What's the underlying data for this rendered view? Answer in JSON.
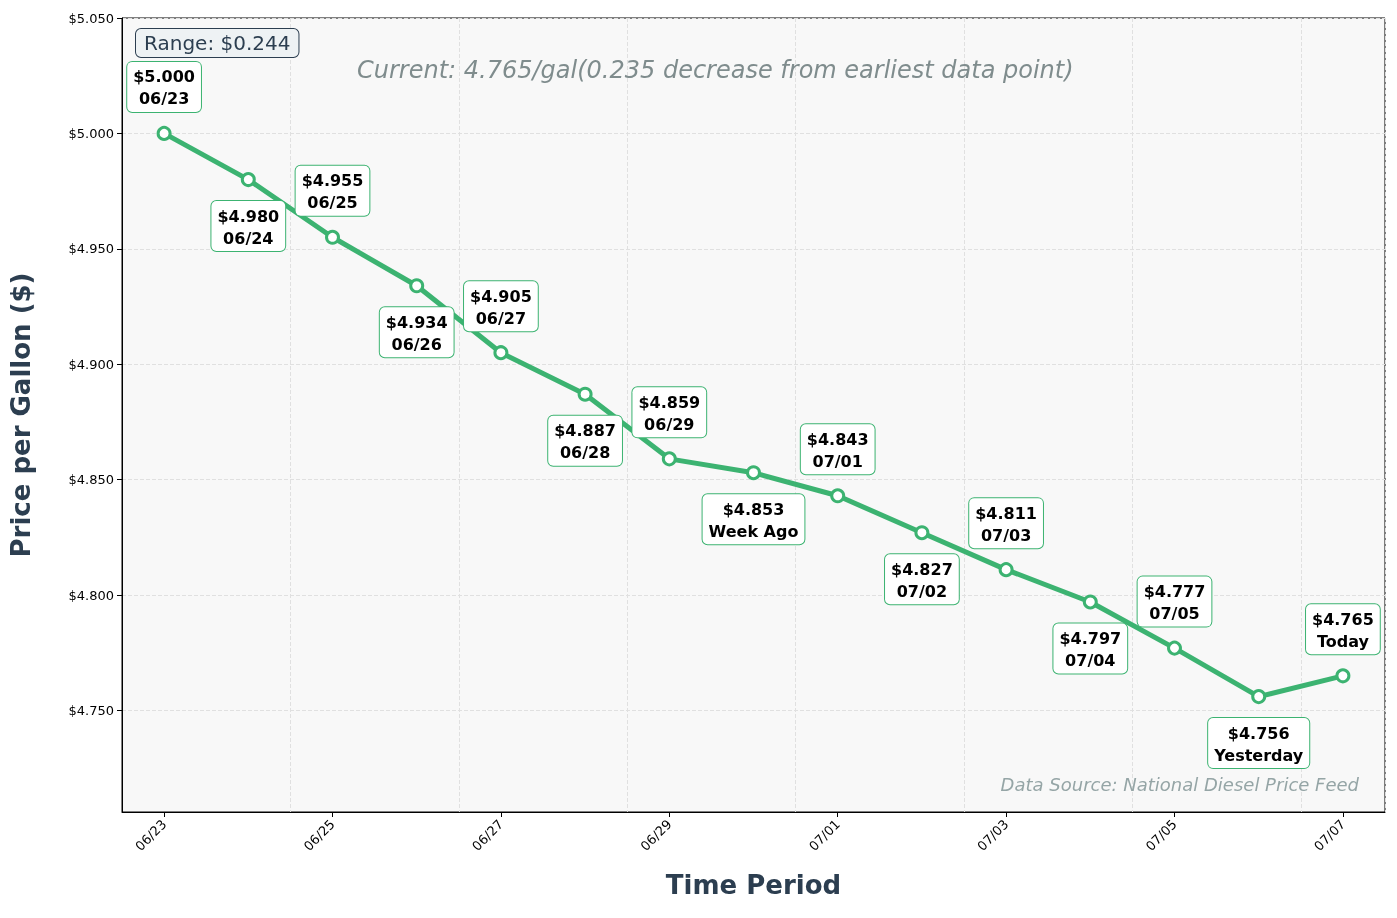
{
  "chart_data": {
    "type": "line",
    "xlabel": "Time Period",
    "ylabel": "Price per Gallon ($)",
    "categories": [
      "06/23",
      null,
      "06/25",
      null,
      "06/27",
      null,
      "06/29",
      null,
      "07/01",
      null,
      "07/03",
      null,
      "07/05",
      null,
      "07/07"
    ],
    "series": [
      {
        "color": "#3cb371",
        "values": [
          5.0,
          4.98,
          4.955,
          4.934,
          4.905,
          4.887,
          4.859,
          4.853,
          4.843,
          4.827,
          4.811,
          4.797,
          4.777,
          4.756,
          4.765
        ],
        "value_labels": [
          "$5.000\n06/23",
          "$4.980\n06/24",
          "$4.955\n06/25",
          "$4.934\n06/26",
          "$4.905\n06/27",
          "$4.887\n06/28",
          "$4.859\n06/29",
          "$4.853\nWeek Ago",
          "$4.843\n07/01",
          "$4.827\n07/02",
          "$4.811\n07/03",
          "$4.797\n07/04",
          "$4.777\n07/05",
          "$4.756\nYesterday",
          "$4.765\nToday"
        ]
      }
    ],
    "ylim": [
      4.706,
      5.05
    ],
    "yticks": [
      {
        "value": 4.75,
        "label": "$4.750"
      },
      {
        "value": 4.8,
        "label": "$4.800"
      },
      {
        "value": 4.85,
        "label": "$4.850"
      },
      {
        "value": 4.9,
        "label": "$4.900"
      },
      {
        "value": 4.95,
        "label": "$4.950"
      },
      {
        "value": 5.0,
        "label": "$5.000"
      },
      {
        "value": 5.05,
        "label": "$5.050"
      }
    ],
    "annotations": [
      "Range: $0.244",
      "Current: 4.765/gal(0.235 decrease from earliest data point)",
      "Data Source: National Diesel Price Feed"
    ],
    "grid": true,
    "marker": "circle",
    "line_style": "solid"
  }
}
